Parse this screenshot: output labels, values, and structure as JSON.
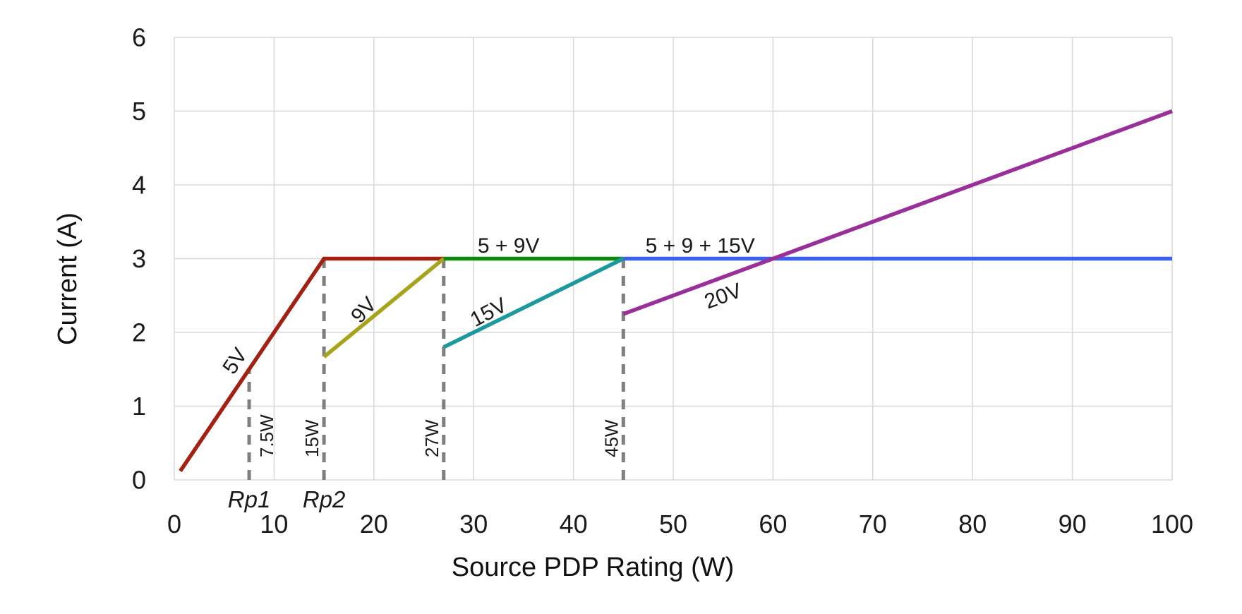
{
  "figure": {
    "background": "#ffffff",
    "title": ""
  },
  "chart_data": {
    "type": "line",
    "title": "",
    "xlabel": "Source PDP Rating (W)",
    "ylabel": "Current (A)",
    "xlim": [
      0,
      100
    ],
    "ylim": [
      0,
      6
    ],
    "xticks": [
      0,
      10,
      20,
      30,
      40,
      50,
      60,
      70,
      80,
      90,
      100
    ],
    "yticks": [
      0,
      1,
      2,
      3,
      4,
      5,
      6
    ],
    "grid": true,
    "grid_color": "#d8d8d8",
    "tick_label_color": "#1a1a1a",
    "legend_position": "none",
    "series": [
      {
        "name": "5V",
        "color": "#a32113",
        "points": [
          [
            0.6,
            0.12
          ],
          [
            15,
            3
          ],
          [
            27,
            3
          ]
        ]
      },
      {
        "name": "9V",
        "color": "#a7a41c",
        "points": [
          [
            15,
            1.667
          ],
          [
            27,
            3
          ]
        ]
      },
      {
        "name": "5 + 9V",
        "color": "#0c8a0e",
        "points": [
          [
            27,
            3
          ],
          [
            45,
            3
          ]
        ]
      },
      {
        "name": "15V",
        "color": "#1b999e",
        "points": [
          [
            27,
            1.8
          ],
          [
            45,
            3
          ]
        ]
      },
      {
        "name": "5 + 9 + 15V",
        "color": "#3b62ec",
        "points": [
          [
            45,
            3
          ],
          [
            100,
            3
          ]
        ]
      },
      {
        "name": "20V",
        "color": "#9a2f9c",
        "points": [
          [
            45,
            2.25
          ],
          [
            100,
            5
          ]
        ]
      }
    ],
    "series_labels": [
      {
        "text": "5V",
        "color": "#a32113",
        "x": 6.1,
        "y": 1.61,
        "rotation": -56
      },
      {
        "text": "9V",
        "color": "#808080",
        "x": 19.0,
        "y": 2.3,
        "rotation": -48
      },
      {
        "text": "5 + 9V",
        "color": "#0c8a0e",
        "x": 33.5,
        "y": 3.17,
        "rotation": 0
      },
      {
        "text": "15V",
        "color": "#1b999e",
        "x": 31.5,
        "y": 2.27,
        "rotation": -28
      },
      {
        "text": "5 + 9 + 15V",
        "color": "#3b62ec",
        "x": 52.7,
        "y": 3.17,
        "rotation": 0
      },
      {
        "text": "20V",
        "color": "#9a2f9c",
        "x": 55.0,
        "y": 2.49,
        "rotation": -20
      }
    ],
    "power_markers": [
      {
        "label": "7.5W",
        "x": 7.5,
        "line_top": 1.5,
        "label_side": "right",
        "rp_label": "Rp1"
      },
      {
        "label": "15W",
        "x": 15,
        "line_top": 3,
        "label_side": "left",
        "rp_label": "Rp2"
      },
      {
        "label": "27W",
        "x": 27,
        "line_top": 3,
        "label_side": "left",
        "rp_label": ""
      },
      {
        "label": "45W",
        "x": 45,
        "line_top": 3,
        "label_side": "left",
        "rp_label": ""
      }
    ],
    "marker_line_color": "#7f7f7f",
    "marker_label_color": "#858585",
    "rp_label_color": "#8c8c8c"
  }
}
